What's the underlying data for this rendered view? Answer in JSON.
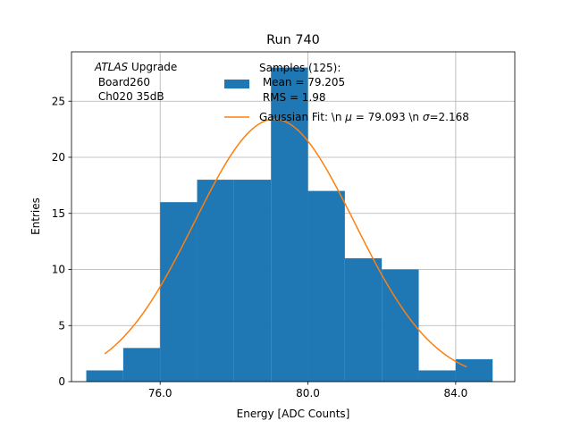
{
  "chart_data": {
    "type": "bar",
    "title": "Run 740",
    "xlabel": "Energy [ADC Counts]",
    "ylabel": "Entries",
    "xlim": [
      73.6,
      85.6
    ],
    "ylim": [
      0,
      29.4
    ],
    "grid": true,
    "x_ticks": [
      {
        "value": 76,
        "label": "76.0"
      },
      {
        "value": 80,
        "label": "80.0"
      },
      {
        "value": 84,
        "label": "84.0"
      }
    ],
    "y_ticks": [
      {
        "value": 0,
        "label": "0"
      },
      {
        "value": 5,
        "label": "5"
      },
      {
        "value": 10,
        "label": "10"
      },
      {
        "value": 15,
        "label": "15"
      },
      {
        "value": 20,
        "label": "20"
      },
      {
        "value": 25,
        "label": "25"
      }
    ],
    "histogram": {
      "name": "Samples (125):",
      "color": "#1f77b4",
      "bin_edges": [
        74,
        75,
        76,
        77,
        78,
        79,
        80,
        81,
        82,
        83,
        84,
        85
      ],
      "counts": [
        1,
        3,
        16,
        18,
        18,
        28,
        17,
        11,
        10,
        1,
        2
      ]
    },
    "fit": {
      "name": "Gaussian Fit",
      "color": "#ff7f0e",
      "mu": 79.093,
      "sigma": 2.168,
      "amplitude": 23.4,
      "x_range": [
        74.5,
        84.3
      ]
    },
    "annotation": {
      "italic": "ATLAS",
      "rest": " Upgrade",
      "line2": " Board260",
      "line3": " Ch020 35dB"
    },
    "legend": {
      "placement": "top-right",
      "hist_lines": [
        "Samples (125):",
        " Mean = 79.205",
        " RMS = 1.98"
      ],
      "fit_prefix": "Gaussian Fit: \\n ",
      "fit_mu_symbol": "μ",
      "fit_mu_text": " = 79.093 \\n ",
      "fit_sigma_symbol": "σ",
      "fit_sigma_text": "=2.168"
    }
  }
}
